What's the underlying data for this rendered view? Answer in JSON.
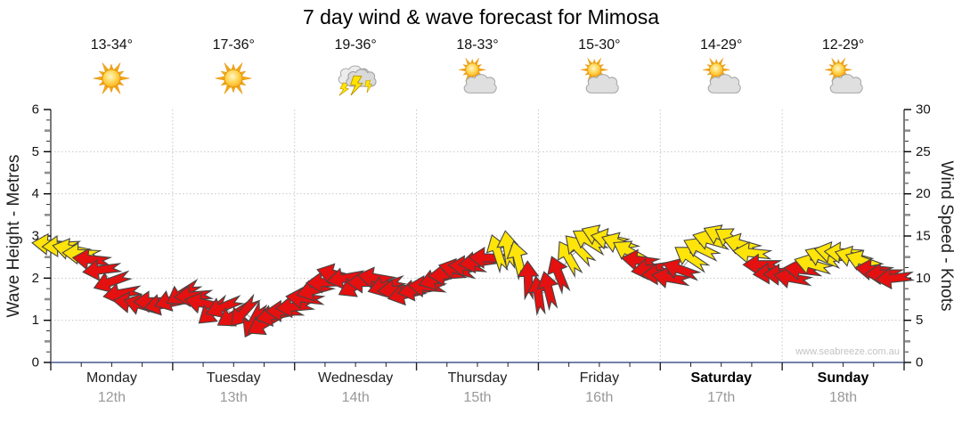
{
  "title": "7 day wind & wave forecast for Mimosa",
  "watermark": "www.seabreeze.com.au",
  "forecast": {
    "days": [
      {
        "name": "Monday",
        "date": "12th",
        "temp": "13-34°",
        "icon": "sunny",
        "weekend": false
      },
      {
        "name": "Tuesday",
        "date": "13th",
        "temp": "17-36°",
        "icon": "sunny",
        "weekend": false
      },
      {
        "name": "Wednesday",
        "date": "14th",
        "temp": "19-36°",
        "icon": "storm",
        "weekend": false
      },
      {
        "name": "Thursday",
        "date": "15th",
        "temp": "18-33°",
        "icon": "partly",
        "weekend": false
      },
      {
        "name": "Friday",
        "date": "16th",
        "temp": "15-30°",
        "icon": "partly",
        "weekend": false
      },
      {
        "name": "Saturday",
        "date": "17th",
        "temp": "14-29°",
        "icon": "partly",
        "weekend": true
      },
      {
        "name": "Sunday",
        "date": "18th",
        "temp": "12-29°",
        "icon": "partly",
        "weekend": true
      }
    ]
  },
  "chart_data": {
    "type": "wind-arrow-timeseries",
    "left_axis": {
      "title": "Wave Height - Metres",
      "min": 0,
      "max": 6,
      "ticks": [
        0,
        1,
        2,
        3,
        4,
        5,
        6
      ]
    },
    "right_axis": {
      "title": "Wind Speed - Knots",
      "min": 0,
      "max": 30,
      "ticks": [
        0,
        5,
        10,
        15,
        20,
        25,
        30
      ]
    },
    "x_axis": {
      "span_hours": 168,
      "days_per_week": 7,
      "minor_tick_hours": 6
    },
    "colors": {
      "y": "#FFE40A",
      "r": "#E51010",
      "outline": "#454545",
      "trend": "#9a9a9a",
      "grid": "#c6c6c6",
      "axis": "#333333",
      "bottom_axis": "#44598c"
    },
    "arrow_fields": [
      "hour",
      "knots",
      "direction_deg_cw_from_east",
      "color(y=yellow,r=red)"
    ],
    "arrows": [
      [
        0,
        14,
        185,
        "y"
      ],
      [
        2,
        13.8,
        178,
        "y"
      ],
      [
        4,
        13.4,
        192,
        "y"
      ],
      [
        6,
        12.9,
        183,
        "y"
      ],
      [
        8,
        12.2,
        186,
        "r"
      ],
      [
        10,
        11,
        173,
        "r"
      ],
      [
        12,
        9.6,
        160,
        "r"
      ],
      [
        14,
        8.2,
        170,
        "r"
      ],
      [
        16,
        7.1,
        186,
        "r"
      ],
      [
        18,
        6.8,
        196,
        "r"
      ],
      [
        20,
        7.2,
        180,
        "r"
      ],
      [
        22,
        6.9,
        168,
        "r"
      ],
      [
        24,
        7.4,
        162,
        "r"
      ],
      [
        26,
        8.2,
        148,
        "r"
      ],
      [
        28,
        7.9,
        176,
        "r"
      ],
      [
        30,
        7.0,
        192,
        "r"
      ],
      [
        32,
        6.1,
        140,
        "r"
      ],
      [
        34,
        6.6,
        158,
        "r"
      ],
      [
        36,
        5.6,
        148,
        "r"
      ],
      [
        38,
        6.0,
        132,
        "r"
      ],
      [
        40,
        5.0,
        118,
        "r"
      ],
      [
        42,
        4.6,
        150,
        "r"
      ],
      [
        44,
        5.6,
        168,
        "r"
      ],
      [
        46,
        6.1,
        180,
        "r"
      ],
      [
        48,
        6.6,
        175,
        "r"
      ],
      [
        50,
        7.6,
        186,
        "r"
      ],
      [
        52,
        8.6,
        164,
        "r"
      ],
      [
        54,
        9.5,
        178,
        "r"
      ],
      [
        56,
        10.4,
        196,
        "r"
      ],
      [
        58,
        10.0,
        170,
        "r"
      ],
      [
        60,
        9.1,
        152,
        "r"
      ],
      [
        62,
        9.5,
        180,
        "r"
      ],
      [
        64,
        10.0,
        190,
        "r"
      ],
      [
        66,
        9.1,
        162,
        "r"
      ],
      [
        68,
        8.6,
        176,
        "r"
      ],
      [
        70,
        8.1,
        166,
        "r"
      ],
      [
        72,
        8.6,
        170,
        "r"
      ],
      [
        74,
        9.0,
        184,
        "r"
      ],
      [
        76,
        9.9,
        162,
        "r"
      ],
      [
        78,
        10.4,
        176,
        "r"
      ],
      [
        80,
        11.0,
        194,
        "r"
      ],
      [
        82,
        11.4,
        184,
        "r"
      ],
      [
        84,
        11.9,
        172,
        "r"
      ],
      [
        86,
        12.4,
        182,
        "r"
      ],
      [
        88,
        13.0,
        252,
        "y"
      ],
      [
        90,
        13.4,
        262,
        "y"
      ],
      [
        92,
        12.2,
        256,
        "y"
      ],
      [
        94,
        9.8,
        268,
        "r"
      ],
      [
        96,
        8.0,
        262,
        "r"
      ],
      [
        98,
        8.6,
        256,
        "r"
      ],
      [
        100,
        10.5,
        248,
        "r"
      ],
      [
        102,
        12.4,
        240,
        "y"
      ],
      [
        104,
        13.4,
        226,
        "y"
      ],
      [
        106,
        14.4,
        212,
        "y"
      ],
      [
        108,
        15.0,
        202,
        "y"
      ],
      [
        110,
        14.6,
        192,
        "y"
      ],
      [
        112,
        14.1,
        200,
        "y"
      ],
      [
        114,
        13.1,
        210,
        "y"
      ],
      [
        116,
        12.1,
        188,
        "r"
      ],
      [
        118,
        11.1,
        172,
        "r"
      ],
      [
        120,
        10.5,
        176,
        "r"
      ],
      [
        122,
        10.0,
        190,
        "r"
      ],
      [
        124,
        11.0,
        200,
        "r"
      ],
      [
        126,
        12.4,
        214,
        "y"
      ],
      [
        128,
        13.5,
        206,
        "y"
      ],
      [
        130,
        14.5,
        196,
        "y"
      ],
      [
        132,
        15.0,
        204,
        "y"
      ],
      [
        134,
        14.6,
        212,
        "y"
      ],
      [
        136,
        14.0,
        196,
        "y"
      ],
      [
        138,
        13.0,
        186,
        "y"
      ],
      [
        140,
        11.6,
        180,
        "r"
      ],
      [
        142,
        10.6,
        176,
        "r"
      ],
      [
        144,
        10.4,
        182,
        "r"
      ],
      [
        146,
        10.0,
        190,
        "r"
      ],
      [
        148,
        11.0,
        186,
        "r"
      ],
      [
        150,
        11.6,
        196,
        "y"
      ],
      [
        152,
        12.5,
        202,
        "y"
      ],
      [
        154,
        13.0,
        192,
        "y"
      ],
      [
        156,
        13.0,
        184,
        "y"
      ],
      [
        158,
        12.5,
        196,
        "y"
      ],
      [
        160,
        12.0,
        200,
        "y"
      ],
      [
        162,
        11.0,
        186,
        "r"
      ],
      [
        164,
        10.5,
        180,
        "r"
      ],
      [
        166,
        10.0,
        174,
        "r"
      ]
    ]
  }
}
